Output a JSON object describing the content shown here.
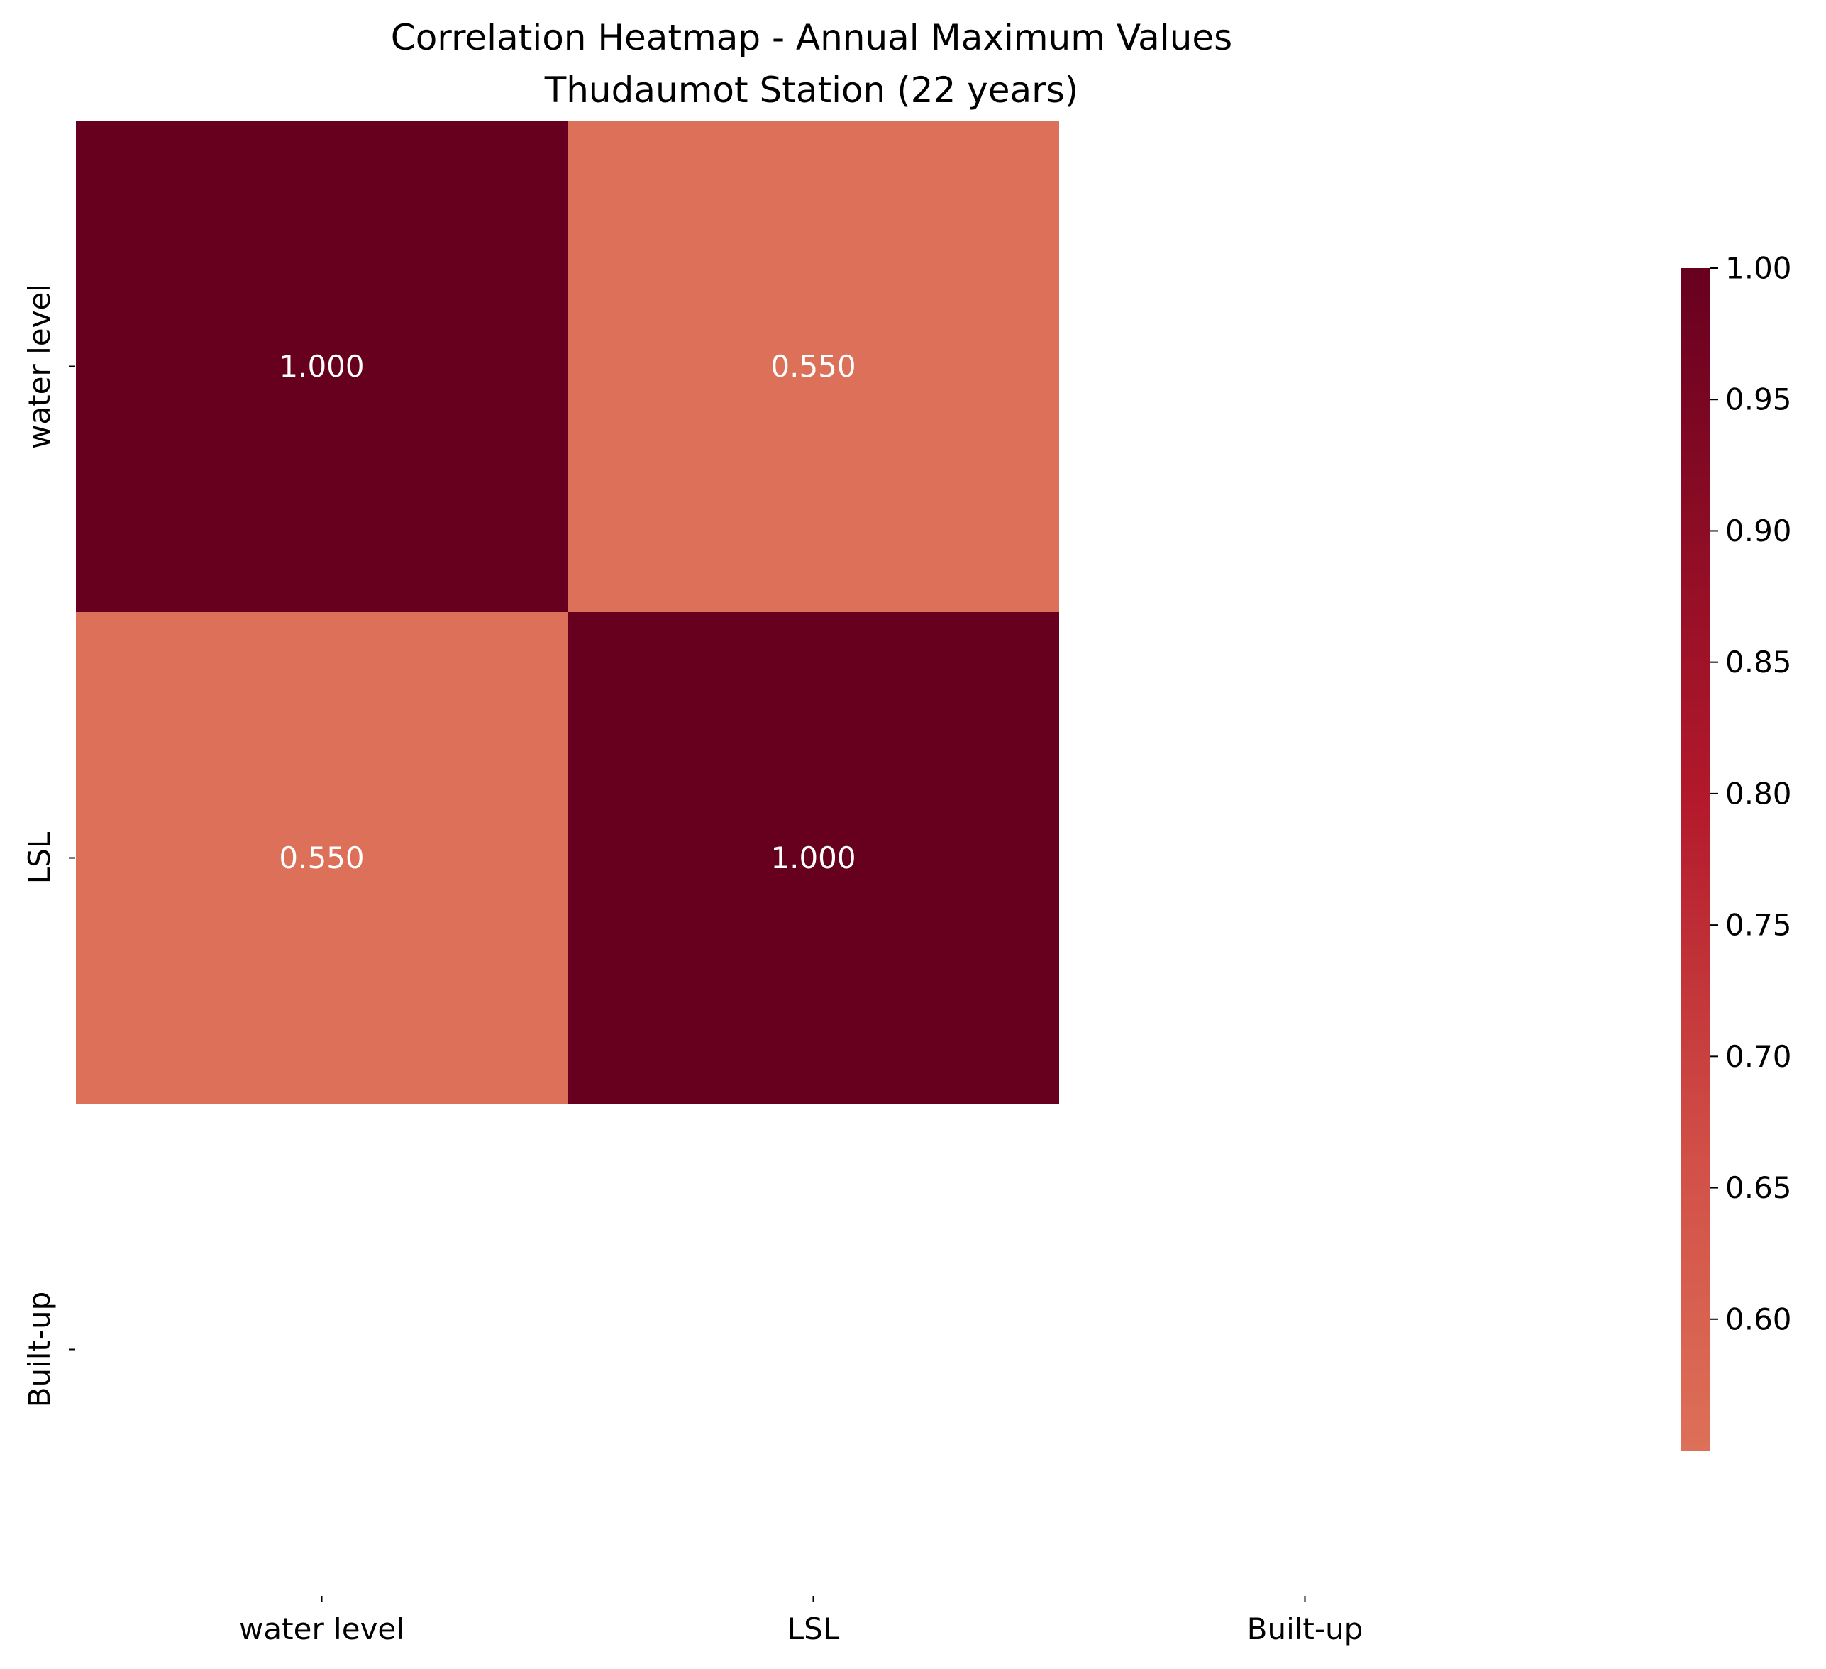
{
  "chart_data": {
    "type": "heatmap",
    "title": "Correlation Heatmap - Annual Maximum Values",
    "subtitle": "Thudaumot Station (22 years)",
    "xlabel": "",
    "ylabel": "",
    "x_categories": [
      "water level",
      "LSL",
      "Built-up"
    ],
    "y_categories": [
      "water level",
      "LSL",
      "Built-up"
    ],
    "values": [
      [
        1.0,
        0.55,
        null
      ],
      [
        0.55,
        1.0,
        null
      ],
      [
        null,
        null,
        null
      ]
    ],
    "annotations": [
      [
        "1.000",
        "0.550",
        ""
      ],
      [
        "0.550",
        "1.000",
        ""
      ],
      [
        "",
        "",
        ""
      ]
    ],
    "colormap": "RdBu_r",
    "color_range": [
      0.55,
      1.0
    ],
    "colorbar": {
      "ticks": [
        0.6,
        0.65,
        0.7,
        0.75,
        0.8,
        0.85,
        0.9,
        0.95,
        1.0
      ],
      "tick_labels": [
        "0.60",
        "0.65",
        "0.70",
        "0.75",
        "0.80",
        "0.85",
        "0.90",
        "0.95",
        "1.00"
      ],
      "range": [
        0.55,
        1.0
      ],
      "placement": "right"
    },
    "colors": {
      "low": "#dd7058",
      "mid1": "#d14f47",
      "mid2": "#b3192b",
      "high": "#67001f",
      "annotation_text": "#ffffff",
      "axis_text": "#000000"
    },
    "grid": false
  }
}
